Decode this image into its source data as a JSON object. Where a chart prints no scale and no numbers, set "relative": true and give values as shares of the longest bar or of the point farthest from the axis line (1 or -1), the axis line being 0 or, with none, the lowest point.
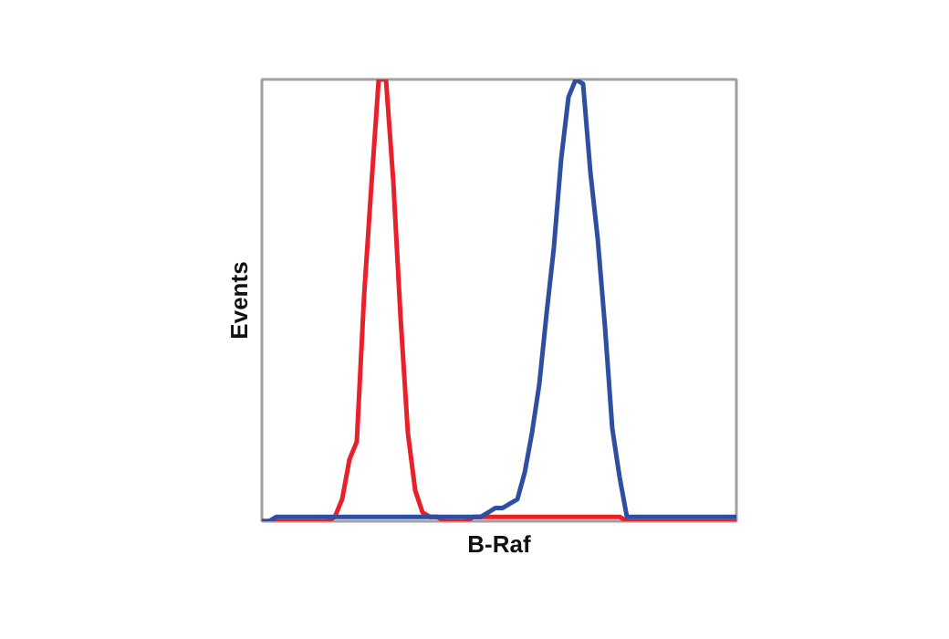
{
  "chart_data": {
    "type": "line",
    "xlabel": "B-Raf",
    "ylabel": "Events",
    "relative": true,
    "categories": [
      null,
      null,
      null,
      null,
      null,
      null,
      null,
      null,
      null,
      null,
      null,
      null,
      null,
      null,
      null,
      null,
      null,
      null,
      null,
      null,
      null,
      null,
      null,
      null,
      null,
      null,
      null,
      null,
      null,
      null,
      null,
      null,
      null,
      null,
      null,
      null,
      null,
      null,
      null,
      null,
      null,
      null,
      null,
      null,
      null,
      null,
      null,
      null,
      null,
      null,
      null,
      null,
      null,
      null,
      null,
      null,
      null,
      null,
      null,
      null,
      null,
      null,
      null,
      null,
      null,
      null
    ],
    "series": [
      {
        "color": "#e8202a",
        "values": [
          0,
          0,
          0,
          0,
          0,
          0,
          0,
          0,
          0,
          0,
          0.01,
          0.05,
          0.14,
          0.18,
          0.51,
          0.76,
          1.0,
          1.0,
          0.77,
          0.46,
          0.2,
          0.07,
          0.02,
          0.01,
          0.01,
          null,
          null,
          null,
          null,
          0.01,
          0.01,
          0.01,
          0.01,
          0.01,
          0.01,
          0.01,
          0.01,
          0.01,
          0.01,
          0.01,
          0.01,
          0.01,
          0.01,
          0.01,
          0.01,
          0.01,
          0.01,
          0.01,
          0.01,
          0.01,
          0,
          0,
          0,
          0,
          0,
          0,
          0,
          0,
          0,
          0,
          0,
          0,
          0,
          0,
          0,
          0
        ]
      },
      {
        "color": "#2e4ea0",
        "values": [
          0,
          0,
          0.01,
          0.01,
          0.01,
          0.01,
          0.01,
          0.01,
          0.01,
          0.01,
          0.01,
          0.01,
          0.01,
          0.01,
          0.01,
          0.01,
          0.01,
          0.01,
          0.01,
          0.01,
          0.01,
          0.01,
          0.01,
          0.01,
          0.01,
          0.01,
          0.01,
          0.01,
          0.01,
          0.01,
          0.01,
          0.02,
          0.03,
          0.03,
          0.04,
          0.05,
          0.11,
          0.2,
          0.31,
          0.47,
          0.62,
          0.82,
          0.96,
          1.0,
          0.99,
          0.79,
          0.64,
          0.44,
          0.21,
          0.1,
          0.01,
          0.01,
          0.01,
          0.01,
          0.01,
          0.01,
          0.01,
          0.01,
          0.01,
          0.01,
          0.01,
          0.01,
          0.01,
          0.01,
          0.01,
          0.01
        ]
      }
    ]
  }
}
